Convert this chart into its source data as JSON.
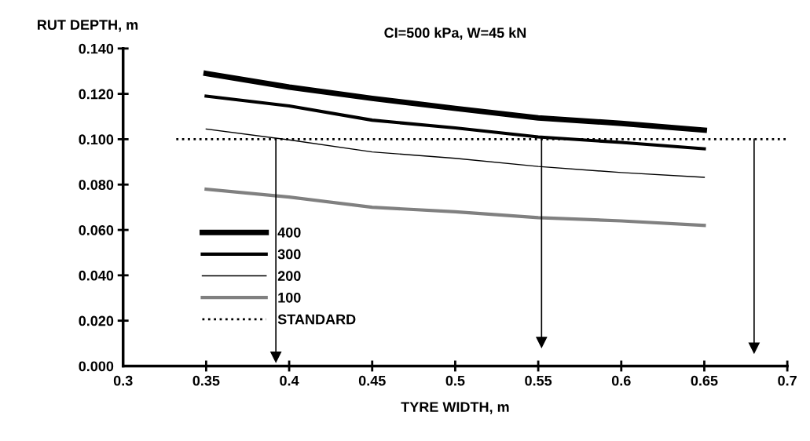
{
  "chart_data": {
    "type": "line",
    "title": "CI=500 kPa, W=45 kN",
    "xlabel": "TYRE WIDTH, m",
    "ylabel": "RUT DEPTH, m",
    "x": [
      0.35,
      0.4,
      0.45,
      0.5,
      0.55,
      0.6,
      0.65
    ],
    "series": [
      {
        "name": "400",
        "color": "#000000",
        "values": [
          0.129,
          0.123,
          0.118,
          0.1136,
          0.1094,
          0.107,
          0.104
        ]
      },
      {
        "name": "300",
        "color": "#000000",
        "values": [
          0.119,
          0.1147,
          0.1084,
          0.105,
          0.101,
          0.0986,
          0.0958
        ]
      },
      {
        "name": "200",
        "color": "#000000",
        "values": [
          0.1045,
          0.0997,
          0.0944,
          0.0916,
          0.088,
          0.0853,
          0.0832
        ]
      },
      {
        "name": "100",
        "color": "#808080",
        "values": [
          0.078,
          0.0745,
          0.07,
          0.068,
          0.0654,
          0.064,
          0.062
        ]
      },
      {
        "x": [
          0.392,
          0.392
        ],
        "color": "#000000",
        "marker": "triangle",
        "values": [
          0.1,
          0.004
        ]
      },
      {
        "x": [
          0.552,
          0.552
        ],
        "color": "#000000",
        "marker": "triangle",
        "values": [
          0.1,
          0.0105
        ]
      },
      {
        "x": [
          0.68,
          0.68
        ],
        "color": "#000000",
        "marker": "triangle",
        "values": [
          0.1,
          0.008
        ]
      }
    ],
    "ref_lines": [
      {
        "axis": "y",
        "value": 0.1,
        "label": "STANDARD",
        "color": "#000000",
        "line_style": "dotted"
      }
    ],
    "xlim": [
      0.3,
      0.7
    ],
    "xticks": [
      0.3,
      0.35,
      0.4,
      0.45,
      0.5,
      0.55,
      0.6,
      0.65,
      0.7
    ],
    "ylim": [
      0,
      0.14
    ],
    "yticks": [
      {
        "value": 0,
        "label": "0.000"
      },
      {
        "value": 0.02,
        "label": "0.020"
      },
      {
        "value": 0.04,
        "label": "0.040"
      },
      {
        "value": 0.06,
        "label": "0.060"
      },
      {
        "value": 0.08,
        "label": "0.080"
      },
      {
        "value": 0.1,
        "label": "0.100"
      },
      {
        "value": 0.12,
        "label": "0.120"
      },
      {
        "value": 0.14,
        "label": "0.140"
      }
    ],
    "grid": false,
    "legend": "left",
    "marker": "none",
    "line_style": "solid"
  }
}
